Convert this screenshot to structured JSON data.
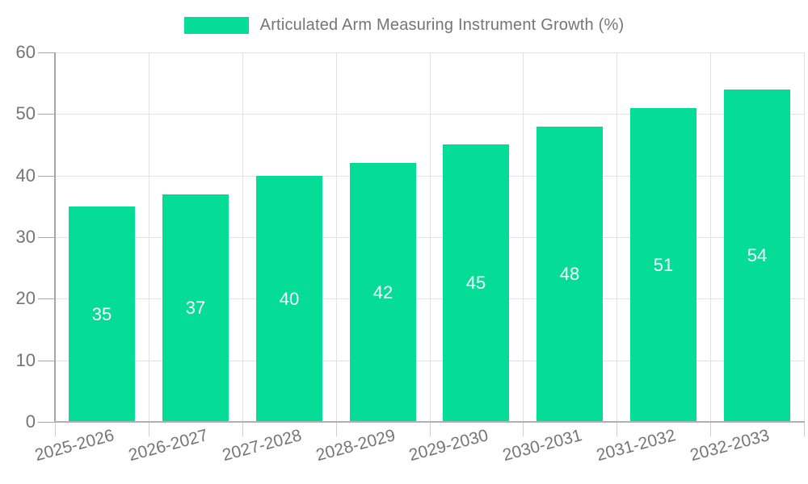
{
  "chart_data": {
    "type": "bar",
    "title": "",
    "legend": "Articulated Arm Measuring Instrument Growth (%)",
    "legend_position": "top-center",
    "categories": [
      "2025-2026",
      "2026-2027",
      "2027-2028",
      "2028-2029",
      "2029-2030",
      "2030-2031",
      "2031-2032",
      "2032-2033"
    ],
    "values": [
      35,
      37,
      40,
      42,
      45,
      48,
      51,
      54
    ],
    "xlabel": "",
    "ylabel": "",
    "ylim": [
      0,
      60
    ],
    "yticks": [
      0,
      10,
      20,
      30,
      40,
      50,
      60
    ],
    "grid": true,
    "value_labels_shown": true,
    "colors": {
      "bar": "#05dc95",
      "grid": "#e2e2e2",
      "axis": "#a6a6a6",
      "tick_label": "#757575",
      "value_label": "#ffffff",
      "background": "#ffffff"
    }
  }
}
